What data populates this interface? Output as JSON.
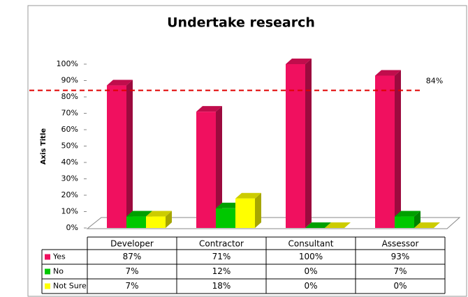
{
  "chart_data": {
    "type": "bar3d",
    "title": "Undertake research",
    "y_axis_title": "Axis Title",
    "categories": [
      "Developer",
      "Contractor",
      "Consultant",
      "Assessor"
    ],
    "series": [
      {
        "name": "Yes",
        "color": "#f0105f",
        "values": [
          87,
          71,
          100,
          93
        ],
        "value_labels": [
          "87%",
          "71%",
          "100%",
          "93%"
        ]
      },
      {
        "name": "No",
        "color": "#00c800",
        "values": [
          7,
          12,
          0,
          7
        ],
        "value_labels": [
          "7%",
          "12%",
          "0%",
          "7%"
        ]
      },
      {
        "name": "Not Sure",
        "color": "#ffff00",
        "values": [
          7,
          18,
          0,
          0
        ],
        "value_labels": [
          "7%",
          "18%",
          "0%",
          "0%"
        ]
      }
    ],
    "ylim": [
      0,
      100
    ],
    "yticks": [
      {
        "value": 0,
        "label": "0%"
      },
      {
        "value": 10,
        "label": "10%"
      },
      {
        "value": 20,
        "label": "20%"
      },
      {
        "value": 30,
        "label": "30%"
      },
      {
        "value": 40,
        "label": "40%"
      },
      {
        "value": 50,
        "label": "50%"
      },
      {
        "value": 60,
        "label": "60%"
      },
      {
        "value": 70,
        "label": "70%"
      },
      {
        "value": 80,
        "label": "80%"
      },
      {
        "value": 90,
        "label": "90%"
      },
      {
        "value": 100,
        "label": "100%"
      }
    ],
    "reference_line": {
      "value": 84,
      "label": "84%",
      "color": "#e00000"
    }
  }
}
